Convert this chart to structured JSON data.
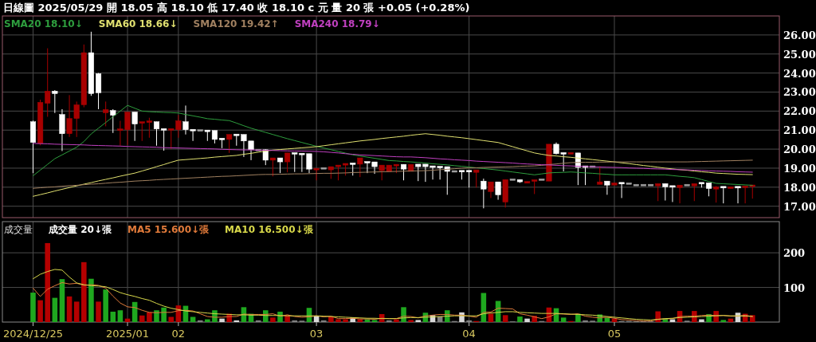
{
  "chart_data": [
    {
      "type": "candlestick",
      "title": "日線圖 2025/05/29 開 18.05 高 18.10 低 17.40 收 18.10 c 元 量 20 張 +0.05 (+0.28%)",
      "categories": [
        "2024/12/25",
        null,
        null,
        null,
        null,
        null,
        null,
        null,
        null,
        null,
        null,
        null,
        null,
        "2025/01",
        null,
        null,
        null,
        null,
        null,
        null,
        "02",
        null,
        null,
        null,
        null,
        null,
        null,
        null,
        null,
        null,
        null,
        null,
        null,
        null,
        null,
        null,
        null,
        null,
        null,
        "03",
        null,
        null,
        null,
        null,
        null,
        null,
        null,
        null,
        null,
        null,
        null,
        null,
        null,
        null,
        null,
        null,
        null,
        null,
        null,
        null,
        "04",
        null,
        null,
        null,
        null,
        null,
        null,
        null,
        null,
        null,
        null,
        null,
        null,
        null,
        null,
        null,
        null,
        null,
        null,
        null,
        "05",
        null,
        null,
        null,
        null,
        null,
        null,
        null,
        null,
        null,
        null,
        null,
        null,
        null,
        null,
        null,
        null,
        null,
        null,
        null
      ],
      "ohlc": [
        [
          21.44,
          21.5,
          18.74,
          20.35
        ],
        [
          20.3,
          22.6,
          20.2,
          22.46
        ],
        [
          22.41,
          25.3,
          21.7,
          23.05
        ],
        [
          23.05,
          23.1,
          21.9,
          22.92
        ],
        [
          21.82,
          22.1,
          19.9,
          20.81
        ],
        [
          20.81,
          22.84,
          20.64,
          21.61
        ],
        [
          21.61,
          22.5,
          20.64,
          22.33
        ],
        [
          22.33,
          25.5,
          22.2,
          25.07
        ],
        [
          25.07,
          26.17,
          22.8,
          22.92
        ],
        [
          23.97,
          24.0,
          22.1,
          22.96
        ],
        [
          21.91,
          22.5,
          21.2,
          22.08
        ],
        [
          22.03,
          22.1,
          20.85,
          21.78
        ],
        [
          20.98,
          21.49,
          20.18,
          21.06
        ],
        [
          21.02,
          21.95,
          20.22,
          21.95
        ],
        [
          21.95,
          21.95,
          20.43,
          21.32
        ],
        [
          21.36,
          21.44,
          20.43,
          21.44
        ],
        [
          21.4,
          21.65,
          20.6,
          21.48
        ],
        [
          21.44,
          21.44,
          20.18,
          21.06
        ],
        [
          21.06,
          21.06,
          19.92,
          21.02
        ],
        [
          21.02,
          21.06,
          20.01,
          21.06
        ],
        [
          21.02,
          21.8,
          20.6,
          21.49
        ],
        [
          21.44,
          22.29,
          20.77,
          21.02
        ],
        [
          21.02,
          21.02,
          20.43,
          20.98
        ],
        [
          20.98,
          20.98,
          20.98,
          20.98
        ],
        [
          20.98,
          20.98,
          20.43,
          20.94
        ],
        [
          20.98,
          20.98,
          20.3,
          20.51
        ],
        [
          20.56,
          20.56,
          20.05,
          20.51
        ],
        [
          20.51,
          20.77,
          19.8,
          20.77
        ],
        [
          20.77,
          20.77,
          20.18,
          20.73
        ],
        [
          20.77,
          20.77,
          19.59,
          20.43
        ],
        [
          20.43,
          20.43,
          19.42,
          19.97
        ],
        [
          19.95,
          19.95,
          19.95,
          19.95
        ],
        [
          19.97,
          19.99,
          19.16,
          19.42
        ],
        [
          19.42,
          19.54,
          18.57,
          19.54
        ],
        [
          19.54,
          19.54,
          18.74,
          19.33
        ],
        [
          19.33,
          19.8,
          18.78,
          19.8
        ],
        [
          19.8,
          19.8,
          18.8,
          19.76
        ],
        [
          19.76,
          19.76,
          18.8,
          19.73
        ],
        [
          19.76,
          19.76,
          18.74,
          18.95
        ],
        [
          18.91,
          18.99,
          18.36,
          18.99
        ],
        [
          18.99,
          18.99,
          18.99,
          18.99
        ],
        [
          18.91,
          19.08,
          18.44,
          19.08
        ],
        [
          19.08,
          19.16,
          18.36,
          19.16
        ],
        [
          19.16,
          19.25,
          18.61,
          19.25
        ],
        [
          19.25,
          19.25,
          18.61,
          19.22
        ],
        [
          19.21,
          19.54,
          18.53,
          19.54
        ],
        [
          19.33,
          19.33,
          18.74,
          19.29
        ],
        [
          19.33,
          19.33,
          18.7,
          19.08
        ],
        [
          18.87,
          19.16,
          18.36,
          19.16
        ],
        [
          18.82,
          19.16,
          18.8,
          19.16
        ],
        [
          19.12,
          19.2,
          18.74,
          19.2
        ],
        [
          19.2,
          19.2,
          18.36,
          18.95
        ],
        [
          18.83,
          19.2,
          18.83,
          19.2
        ],
        [
          19.21,
          19.21,
          18.32,
          19.08
        ],
        [
          19.21,
          19.21,
          18.28,
          19.08
        ],
        [
          19.1,
          19.1,
          18.4,
          19.06
        ],
        [
          19.08,
          19.08,
          18.4,
          19.04
        ],
        [
          19.08,
          19.08,
          17.6,
          18.83
        ],
        [
          18.83,
          18.83,
          18.83,
          18.83
        ],
        [
          18.85,
          18.85,
          18.4,
          18.83
        ],
        [
          18.85,
          18.85,
          17.98,
          18.83
        ],
        [
          18.78,
          18.91,
          17.98,
          18.91
        ],
        [
          18.32,
          18.45,
          16.89,
          17.9
        ],
        [
          17.77,
          18.28,
          17.43,
          18.28
        ],
        [
          18.28,
          18.28,
          17.34,
          17.6
        ],
        [
          17.22,
          18.4,
          16.93,
          18.4
        ],
        [
          18.4,
          18.4,
          18.4,
          18.4
        ],
        [
          18.4,
          18.4,
          18.23,
          18.28
        ],
        [
          18.21,
          18.3,
          18.21,
          18.3
        ],
        [
          18.32,
          18.38,
          17.64,
          18.38
        ],
        [
          18.4,
          18.4,
          18.4,
          18.4
        ],
        [
          18.32,
          20.26,
          18.32,
          20.26
        ],
        [
          20.26,
          20.35,
          19.72,
          19.76
        ],
        [
          19.8,
          19.8,
          18.83,
          19.76
        ],
        [
          19.76,
          19.8,
          19.76,
          19.8
        ],
        [
          19.8,
          19.8,
          18.11,
          19.04
        ],
        [
          19.1,
          19.1,
          18.11,
          19.06
        ],
        [
          19.08,
          19.08,
          19.08,
          19.08
        ],
        [
          18.15,
          19.1,
          18.15,
          18.28
        ],
        [
          18.32,
          18.32,
          17.6,
          18.11
        ],
        [
          18.11,
          18.23,
          18.11,
          18.23
        ],
        [
          18.23,
          18.23,
          17.43,
          18.19
        ],
        [
          18.19,
          18.19,
          18.19,
          18.19
        ],
        [
          18.11,
          18.11,
          18.11,
          18.11
        ],
        [
          18.11,
          18.11,
          18.11,
          18.11
        ],
        [
          18.11,
          18.11,
          18.11,
          18.11
        ],
        [
          18.07,
          18.19,
          17.27,
          18.19
        ],
        [
          18.19,
          18.19,
          17.3,
          18.02
        ],
        [
          18.06,
          18.06,
          17.22,
          18.02
        ],
        [
          17.98,
          18.11,
          17.15,
          18.11
        ],
        [
          18.11,
          18.11,
          18.11,
          18.11
        ],
        [
          18.07,
          18.19,
          17.27,
          18.19
        ],
        [
          18.23,
          18.23,
          17.98,
          18.19
        ],
        [
          18.23,
          18.23,
          17.52,
          17.93
        ],
        [
          17.9,
          18.06,
          17.19,
          18.02
        ],
        [
          18.02,
          18.02,
          17.15,
          17.98
        ],
        [
          17.93,
          18.02,
          17.93,
          18.02
        ],
        [
          18.02,
          18.02,
          17.15,
          17.98
        ],
        [
          17.98,
          18.06,
          17.15,
          18.06
        ],
        [
          18.05,
          18.1,
          17.4,
          18.1
        ]
      ],
      "colors": [
        "#ffffff",
        "#a80000",
        "#a80000",
        "#ffffff",
        "#ffffff",
        "#a80000",
        "#a80000",
        "#a80000",
        "#ffffff",
        "#ffffff",
        "#a80000",
        "#ffffff",
        "#a80000",
        "#a80000",
        "#ffffff",
        "#a80000",
        "#a80000",
        "#ffffff",
        "#ffffff",
        "#a80000",
        "#a80000",
        "#ffffff",
        "#ffffff",
        "#a0a0a0",
        "#ffffff",
        "#ffffff",
        "#ffffff",
        "#a80000",
        "#ffffff",
        "#ffffff",
        "#ffffff",
        "#a0a0a0",
        "#ffffff",
        "#a80000",
        "#ffffff",
        "#a80000",
        "#ffffff",
        "#ffffff",
        "#ffffff",
        "#a80000",
        "#a0a0a0",
        "#a80000",
        "#a80000",
        "#a80000",
        "#ffffff",
        "#a80000",
        "#ffffff",
        "#ffffff",
        "#a80000",
        "#a80000",
        "#a80000",
        "#ffffff",
        "#a80000",
        "#ffffff",
        "#ffffff",
        "#ffffff",
        "#ffffff",
        "#ffffff",
        "#a0a0a0",
        "#ffffff",
        "#ffffff",
        "#a80000",
        "#ffffff",
        "#a80000",
        "#ffffff",
        "#a80000",
        "#a0a0a0",
        "#ffffff",
        "#a80000",
        "#a80000",
        "#a0a0a0",
        "#a80000",
        "#ffffff",
        "#ffffff",
        "#a80000",
        "#ffffff",
        "#ffffff",
        "#a0a0a0",
        "#a80000",
        "#ffffff",
        "#a80000",
        "#ffffff",
        "#a0a0a0",
        "#a0a0a0",
        "#a0a0a0",
        "#a0a0a0",
        "#a80000",
        "#ffffff",
        "#ffffff",
        "#a80000",
        "#a0a0a0",
        "#a80000",
        "#ffffff",
        "#ffffff",
        "#a80000",
        "#ffffff",
        "#a80000",
        "#ffffff",
        "#a80000",
        "#a80000"
      ],
      "series": [
        {
          "name": "SMA20 18.10↓",
          "type": "line",
          "color": "#2e9e3e",
          "values": [
            18.6,
            18.9,
            19.2,
            19.5,
            19.7,
            19.9,
            20.1,
            20.4,
            20.8,
            21.1,
            21.4,
            21.7,
            22.0,
            22.3,
            22.15,
            22.0,
            21.97,
            21.95,
            21.93,
            21.92,
            21.9,
            21.82,
            21.75,
            21.68,
            21.6,
            21.57,
            21.53,
            21.5,
            21.37,
            21.23,
            21.1,
            20.99,
            20.88,
            20.77,
            20.66,
            20.55,
            20.45,
            20.35,
            20.25,
            20.15,
            20.06,
            19.97,
            19.88,
            19.79,
            19.7,
            19.64,
            19.58,
            19.52,
            19.46,
            19.4,
            19.38,
            19.35,
            19.33,
            19.3,
            19.27,
            19.23,
            19.2,
            19.17,
            19.13,
            19.1,
            19.06,
            19.02,
            18.98,
            18.94,
            18.9,
            18.85,
            18.8,
            18.75,
            18.7,
            18.65,
            18.7,
            18.75,
            18.77,
            18.78,
            18.8,
            18.78,
            18.75,
            18.73,
            18.7,
            18.68,
            18.65,
            18.65,
            18.65,
            18.65,
            18.65,
            18.65,
            18.65,
            18.65,
            18.61,
            18.57,
            18.54,
            18.5,
            18.4,
            18.3,
            18.2,
            18.18,
            18.16,
            18.14,
            18.12,
            18.1
          ]
        },
        {
          "name": "SMA60 18.66↓",
          "type": "line",
          "color": "#e0e070",
          "values": [
            17.52,
            17.61,
            17.7,
            17.8,
            17.89,
            17.98,
            18.07,
            18.16,
            18.24,
            18.33,
            18.41,
            18.49,
            18.58,
            18.66,
            18.74,
            18.85,
            18.96,
            19.08,
            19.19,
            19.31,
            19.42,
            19.45,
            19.48,
            19.51,
            19.54,
            19.58,
            19.61,
            19.64,
            19.67,
            19.73,
            19.78,
            19.84,
            19.9,
            19.95,
            19.98,
            20.01,
            20.04,
            20.07,
            20.1,
            20.13,
            20.18,
            20.23,
            20.28,
            20.33,
            20.38,
            20.43,
            20.47,
            20.51,
            20.56,
            20.6,
            20.64,
            20.68,
            20.73,
            20.77,
            20.81,
            20.77,
            20.73,
            20.68,
            20.64,
            20.6,
            20.55,
            20.5,
            20.45,
            20.4,
            20.35,
            20.24,
            20.13,
            20.02,
            19.91,
            19.8,
            19.73,
            19.67,
            19.64,
            19.6,
            19.57,
            19.53,
            19.49,
            19.45,
            19.41,
            19.37,
            19.33,
            19.28,
            19.24,
            19.19,
            19.14,
            19.1,
            19.05,
            19.0,
            18.96,
            18.92,
            18.89,
            18.85,
            18.81,
            18.78,
            18.74,
            18.72,
            18.7,
            18.68,
            18.67,
            18.66
          ]
        },
        {
          "name": "SMA120 19.42↑",
          "type": "line",
          "color": "#a08060",
          "values": [
            17.94,
            17.97,
            18.0,
            18.02,
            18.05,
            18.08,
            18.1,
            18.13,
            18.16,
            18.18,
            18.21,
            18.24,
            18.26,
            18.29,
            18.32,
            18.34,
            18.36,
            18.39,
            18.41,
            18.43,
            18.45,
            18.47,
            18.49,
            18.51,
            18.53,
            18.55,
            18.57,
            18.58,
            18.6,
            18.62,
            18.64,
            18.66,
            18.67,
            18.67,
            18.68,
            18.69,
            18.7,
            18.7,
            18.71,
            18.72,
            18.73,
            18.73,
            18.74,
            18.75,
            18.77,
            18.78,
            18.79,
            18.8,
            18.81,
            18.82,
            18.83,
            18.84,
            18.85,
            18.86,
            18.87,
            18.89,
            18.92,
            18.94,
            18.97,
            19.0,
            19.01,
            19.02,
            19.04,
            19.05,
            19.06,
            19.07,
            19.08,
            19.1,
            19.11,
            19.12,
            19.15,
            19.19,
            19.22,
            19.26,
            19.29,
            19.3,
            19.31,
            19.31,
            19.32,
            19.32,
            19.33,
            19.33,
            19.33,
            19.33,
            19.33,
            19.33,
            19.33,
            19.33,
            19.33,
            19.33,
            19.33,
            19.34,
            19.35,
            19.36,
            19.37,
            19.38,
            19.39,
            19.4,
            19.41,
            19.42
          ]
        },
        {
          "name": "SMA240 18.79↓",
          "type": "line",
          "color": "#c040c0",
          "values": [
            20.3,
            20.29,
            20.28,
            20.26,
            20.25,
            20.24,
            20.23,
            20.22,
            20.2,
            20.19,
            20.18,
            20.17,
            20.16,
            20.14,
            20.13,
            20.12,
            20.11,
            20.1,
            20.08,
            20.07,
            20.06,
            20.05,
            20.04,
            20.03,
            20.02,
            20.01,
            19.99,
            19.98,
            19.97,
            19.96,
            19.96,
            19.95,
            19.94,
            19.93,
            19.92,
            19.91,
            19.9,
            19.9,
            19.89,
            19.88,
            19.86,
            19.83,
            19.8,
            19.76,
            19.73,
            19.7,
            19.68,
            19.66,
            19.64,
            19.62,
            19.6,
            19.59,
            19.59,
            19.57,
            19.55,
            19.52,
            19.49,
            19.47,
            19.44,
            19.42,
            19.4,
            19.37,
            19.35,
            19.33,
            19.31,
            19.29,
            19.27,
            19.24,
            19.22,
            19.2,
            19.18,
            19.17,
            19.15,
            19.13,
            19.12,
            19.1,
            19.09,
            19.07,
            19.06,
            19.05,
            19.04,
            19.03,
            19.01,
            19.0,
            18.99,
            18.97,
            18.96,
            18.95,
            18.93,
            18.92,
            18.91,
            18.89,
            18.88,
            18.86,
            18.85,
            18.84,
            18.83,
            18.81,
            18.8,
            18.79
          ]
        }
      ],
      "ylim": [
        16.4,
        27.0
      ],
      "yticks": [
        {
          "value": 17,
          "label": "17.00"
        },
        {
          "value": 18,
          "label": "18.00"
        },
        {
          "value": 19,
          "label": "19.00"
        },
        {
          "value": 20,
          "label": "20.00"
        },
        {
          "value": 21,
          "label": "21.00"
        },
        {
          "value": 22,
          "label": "22.00"
        },
        {
          "value": 23,
          "label": "23.00"
        },
        {
          "value": 24,
          "label": "24.00"
        },
        {
          "value": 25,
          "label": "25.00"
        },
        {
          "value": 26,
          "label": "26.00"
        }
      ],
      "grid": true,
      "tick_labels": "y",
      "legend": "top left"
    },
    {
      "type": "bar",
      "title": "成交量",
      "categories": [
        "2024/12/25",
        null,
        null,
        null,
        null,
        null,
        null,
        null,
        null,
        null,
        null,
        null,
        null,
        "2025/01",
        null,
        null,
        null,
        null,
        null,
        null,
        "02",
        null,
        null,
        null,
        null,
        null,
        null,
        null,
        null,
        null,
        null,
        null,
        null,
        null,
        null,
        null,
        null,
        null,
        null,
        "03",
        null,
        null,
        null,
        null,
        null,
        null,
        null,
        null,
        null,
        null,
        null,
        null,
        null,
        null,
        null,
        null,
        null,
        null,
        null,
        null,
        "04",
        null,
        null,
        null,
        null,
        null,
        null,
        null,
        null,
        null,
        null,
        null,
        null,
        null,
        null,
        null,
        null,
        null,
        null,
        null,
        "05",
        null,
        null,
        null,
        null,
        null,
        null,
        null,
        null,
        null,
        null,
        null,
        null,
        null,
        null,
        null,
        null,
        null,
        null,
        null
      ],
      "series": [
        {
          "name": "成交量 20↓張",
          "type": "bar",
          "values": [
            85,
            63,
            228,
            70,
            124,
            74,
            59,
            173,
            125,
            59,
            94,
            30,
            34,
            10,
            58,
            19,
            28,
            34,
            42,
            15,
            48,
            47,
            15,
            5,
            8,
            34,
            10,
            24,
            5,
            43,
            24,
            5,
            34,
            13,
            30,
            20,
            5,
            4,
            41,
            18,
            5,
            16,
            8,
            8,
            13,
            8,
            8,
            6,
            23,
            5,
            8,
            43,
            6,
            6,
            27,
            20,
            16,
            34,
            3,
            28,
            5,
            3,
            84,
            24,
            61,
            20,
            2,
            16,
            10,
            18,
            3,
            42,
            40,
            13,
            3,
            24,
            5,
            4,
            22,
            13,
            10,
            3,
            3,
            2,
            2,
            2,
            31,
            10,
            8,
            32,
            4,
            32,
            8,
            23,
            32,
            6,
            10,
            27,
            24,
            20
          ],
          "colors": [
            "#1fa81f",
            "#b50000",
            "#b50000",
            "#1fa81f",
            "#1fa81f",
            "#b50000",
            "#b50000",
            "#b50000",
            "#1fa81f",
            "#b50000",
            "#1fa81f",
            "#1fa81f",
            "#1fa81f",
            "#b50000",
            "#1fa81f",
            "#b50000",
            "#b50000",
            "#1fa81f",
            "#1fa81f",
            "#b50000",
            "#b50000",
            "#1fa81f",
            "#1fa81f",
            "#808080",
            "#1fa81f",
            "#1fa81f",
            "#d8d8d8",
            "#b50000",
            "#d8d8d8",
            "#1fa81f",
            "#1fa81f",
            "#808080",
            "#1fa81f",
            "#b50000",
            "#1fa81f",
            "#b50000",
            "#808080",
            "#808080",
            "#1fa81f",
            "#d8d8d8",
            "#808080",
            "#b50000",
            "#b50000",
            "#b50000",
            "#d8d8d8",
            "#b50000",
            "#1fa81f",
            "#1fa81f",
            "#b50000",
            "#808080",
            "#b50000",
            "#1fa81f",
            "#b50000",
            "#d8d8d8",
            "#1fa81f",
            "#d8d8d8",
            "#808080",
            "#1fa81f",
            "#808080",
            "#d8d8d8",
            "#808080",
            "#b50000",
            "#1fa81f",
            "#b50000",
            "#1fa81f",
            "#b50000",
            "#808080",
            "#1fa81f",
            "#d8d8d8",
            "#b50000",
            "#808080",
            "#b50000",
            "#1fa81f",
            "#1fa81f",
            "#b50000",
            "#1fa81f",
            "#808080",
            "#808080",
            "#1fa81f",
            "#1fa81f",
            "#b50000",
            "#808080",
            "#808080",
            "#808080",
            "#808080",
            "#808080",
            "#b50000",
            "#1fa81f",
            "#d8d8d8",
            "#b50000",
            "#808080",
            "#b50000",
            "#d8d8d8",
            "#1fa81f",
            "#b50000",
            "#1fa81f",
            "#b50000",
            "#d8d8d8",
            "#b50000",
            "#b50000"
          ]
        },
        {
          "name": "MA5 15.600↓張",
          "type": "line",
          "color": "#e07a3a",
          "values": [
            98,
            74,
            95,
            105,
            114,
            110,
            112,
            106,
            108,
            106,
            98,
            75,
            55,
            44,
            42,
            34,
            28,
            27,
            28,
            28,
            33,
            34,
            32,
            24,
            16,
            14,
            14,
            16,
            16,
            23,
            22,
            22,
            22,
            24,
            17,
            21,
            16,
            14,
            15,
            18,
            15,
            17,
            10,
            10,
            11,
            9,
            9,
            8,
            11,
            10,
            10,
            17,
            16,
            12,
            18,
            20,
            22,
            22,
            20,
            20,
            17,
            14,
            28,
            29,
            40,
            39,
            38,
            24,
            20,
            15,
            10,
            15,
            24,
            23,
            22,
            24,
            17,
            14,
            12,
            14,
            11,
            7,
            6,
            4,
            3,
            3,
            8,
            9,
            10,
            16,
            17,
            17,
            19,
            20,
            19,
            19,
            17,
            17,
            20,
            15.6
          ]
        },
        {
          "name": "MA10 16.500↓張",
          "type": "line",
          "color": "#d8d84a",
          "values": [
            125,
            138,
            146,
            152,
            150,
            130,
            113,
            108,
            105,
            104,
            102,
            94,
            85,
            79,
            74,
            68,
            63,
            54,
            46,
            40,
            36,
            32,
            30,
            28,
            26,
            24,
            23,
            22,
            21,
            21,
            20,
            20,
            19,
            19,
            19,
            18,
            18,
            18,
            18,
            18,
            17,
            16,
            15,
            14,
            13,
            12,
            11,
            11,
            10,
            10,
            10,
            12,
            13,
            13,
            14,
            15,
            16,
            17,
            18,
            18,
            18,
            18,
            24,
            26,
            28,
            30,
            30,
            28,
            27,
            26,
            25,
            25,
            25,
            24,
            23,
            22,
            21,
            20,
            18,
            16,
            14,
            12,
            10,
            8,
            7,
            6,
            8,
            10,
            11,
            13,
            14,
            15,
            16,
            17,
            18,
            19,
            18,
            18,
            17,
            16.5
          ]
        }
      ],
      "ylim": [
        0,
        290
      ],
      "yticks": [
        100,
        200
      ],
      "grid": true,
      "legend": "top left"
    }
  ]
}
